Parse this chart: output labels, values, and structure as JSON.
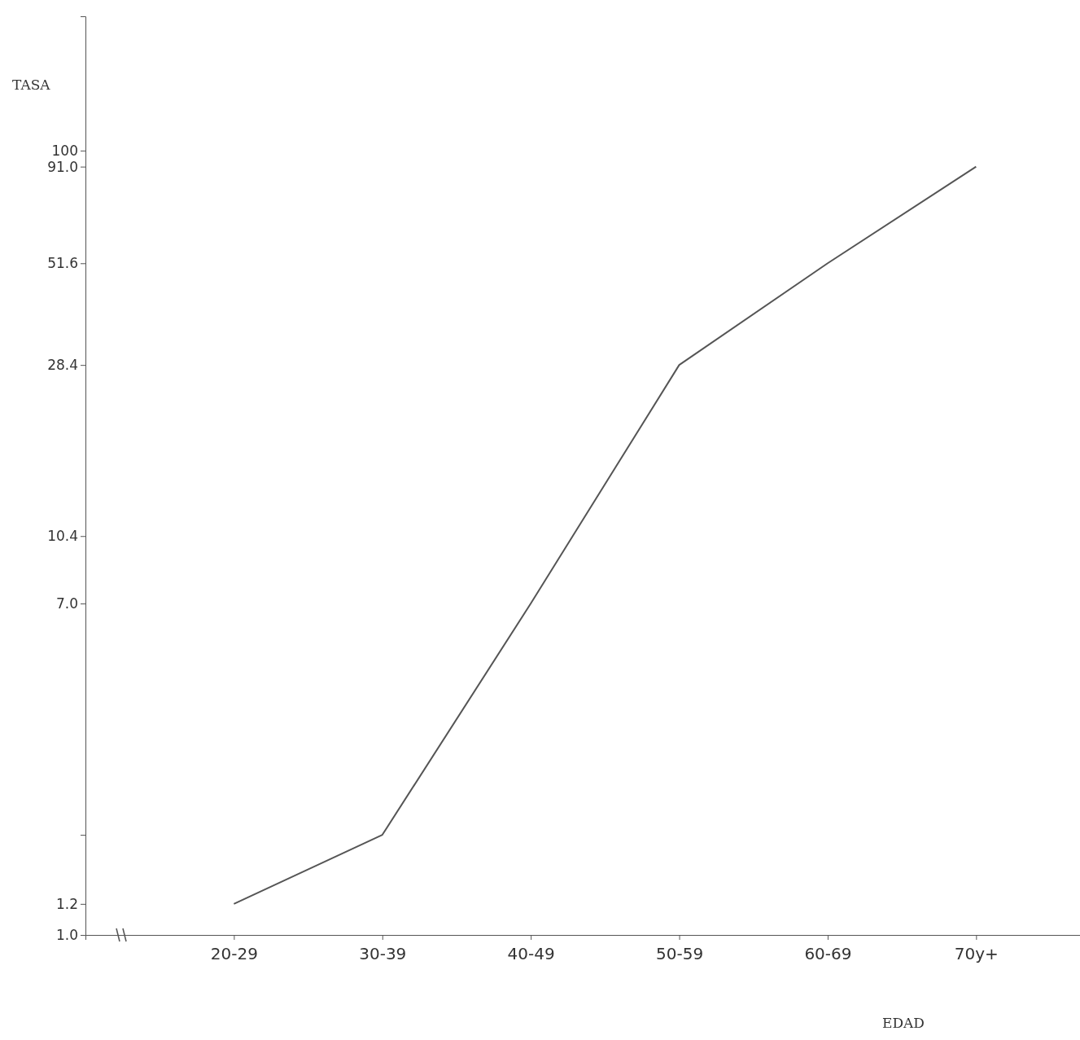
{
  "chart_data": {
    "type": "line",
    "xlabel": "EDAD",
    "ylabel": "TASA",
    "categories": [
      "20-29",
      "30-39",
      "40-49",
      "50-59",
      "60-69",
      "70y+"
    ],
    "series": [
      {
        "color": "#555555",
        "values": [
          1.2,
          1.8,
          7.0,
          28.4,
          51.6,
          91.0
        ]
      }
    ],
    "log": "y",
    "ylim": [
      1,
      220
    ],
    "yticks": [
      {
        "value": 1,
        "label": "1.0"
      },
      {
        "value": 1.2,
        "label": "1.2"
      },
      {
        "value": 1.8,
        "label": null
      },
      {
        "value": 7,
        "label": "7.0"
      },
      {
        "value": 10.4,
        "label": "10.4"
      },
      {
        "value": 28.4,
        "label": "28.4"
      },
      {
        "value": 51.6,
        "label": "51.6"
      },
      {
        "value": 91,
        "label": "91.0"
      },
      100
    ],
    "grid": false,
    "line_style": "solid"
  }
}
